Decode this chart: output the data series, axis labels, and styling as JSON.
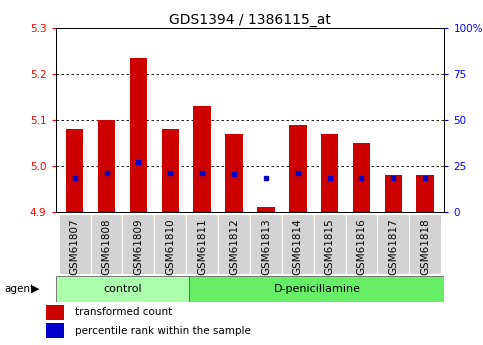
{
  "title": "GDS1394 / 1386115_at",
  "categories": [
    "GSM61807",
    "GSM61808",
    "GSM61809",
    "GSM61810",
    "GSM61811",
    "GSM61812",
    "GSM61813",
    "GSM61814",
    "GSM61815",
    "GSM61816",
    "GSM61817",
    "GSM61818"
  ],
  "red_values": [
    5.08,
    5.1,
    5.235,
    5.08,
    5.13,
    5.07,
    4.912,
    5.09,
    5.07,
    5.05,
    4.98,
    4.98
  ],
  "blue_values": [
    4.974,
    4.984,
    5.008,
    4.984,
    4.984,
    4.982,
    4.974,
    4.984,
    4.974,
    4.974,
    4.974,
    4.974
  ],
  "ylim_left": [
    4.9,
    5.3
  ],
  "ylim_right": [
    0,
    100
  ],
  "yticks_left": [
    4.9,
    5.0,
    5.1,
    5.2,
    5.3
  ],
  "yticks_right": [
    0,
    25,
    50,
    75,
    100
  ],
  "ytick_labels_right": [
    "0",
    "25",
    "50",
    "75",
    "100%"
  ],
  "ytick_labels_left": [
    "4.9",
    "5.0",
    "5.1",
    "5.2",
    "5.3"
  ],
  "grid_lines": [
    5.0,
    5.1,
    5.2
  ],
  "bar_color": "#cc0000",
  "dot_color": "#0000cc",
  "bar_width": 0.55,
  "n_samples": 12,
  "n_control": 4,
  "legend_items": [
    {
      "label": "transformed count",
      "color": "#cc0000"
    },
    {
      "label": "percentile rank within the sample",
      "color": "#0000cc"
    }
  ],
  "background_color": "#ffffff",
  "title_fontsize": 10,
  "tick_fontsize": 7.5,
  "label_fontsize": 7.5,
  "group_label_fontsize": 8,
  "agent_label": "agent"
}
